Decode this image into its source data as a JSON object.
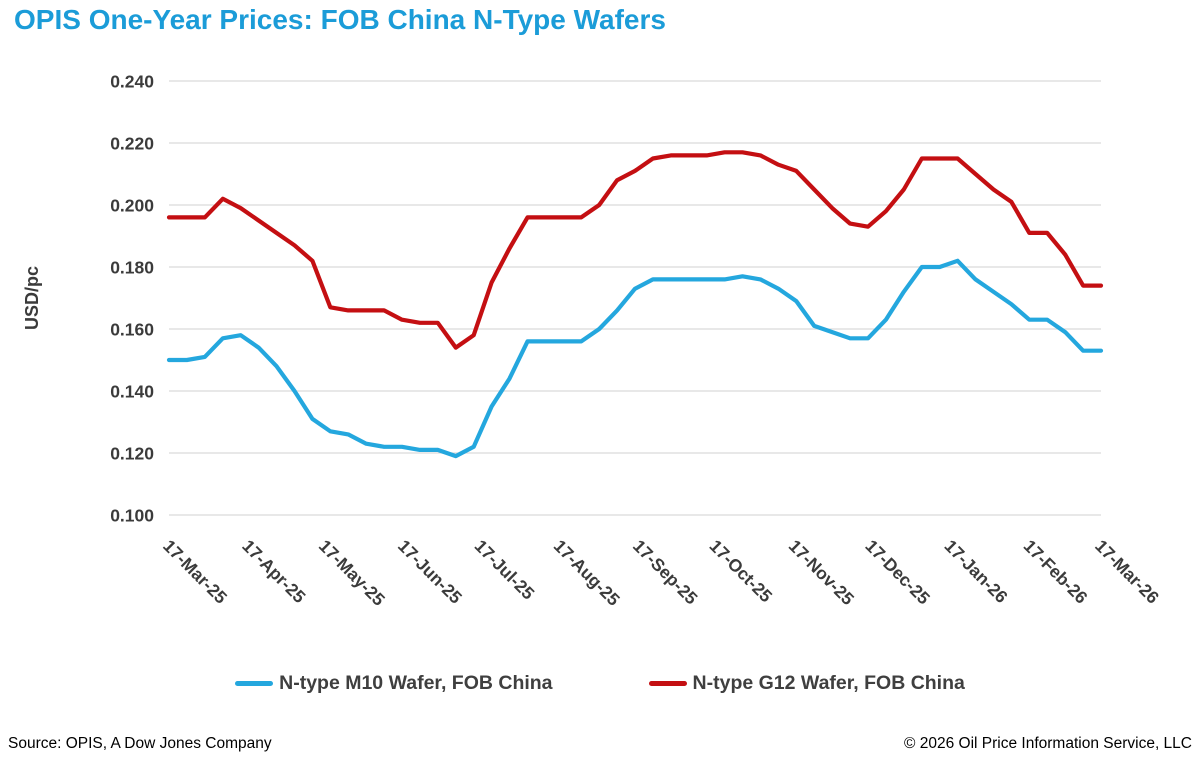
{
  "title": "OPIS One-Year Prices: FOB China N-Type Wafers",
  "colors": {
    "title": "#1b9cd8",
    "m10_line": "#24a7de",
    "g12_line": "#c40f12",
    "grid": "#dadada",
    "axis_text": "#3b3b3b"
  },
  "y_axis": {
    "label": "USD/pc",
    "ticks": [
      0.24,
      0.22,
      0.2,
      0.18,
      0.16,
      0.14,
      0.12,
      0.1
    ]
  },
  "x_axis": {
    "ticks": [
      {
        "label": "17-Mar-25",
        "day": 0
      },
      {
        "label": "17-Apr-25",
        "day": 31
      },
      {
        "label": "17-May-25",
        "day": 61
      },
      {
        "label": "17-Jun-25",
        "day": 92
      },
      {
        "label": "17-Jul-25",
        "day": 122
      },
      {
        "label": "17-Aug-25",
        "day": 153
      },
      {
        "label": "17-Sep-25",
        "day": 184
      },
      {
        "label": "17-Oct-25",
        "day": 214
      },
      {
        "label": "17-Nov-25",
        "day": 245
      },
      {
        "label": "17-Dec-25",
        "day": 275
      },
      {
        "label": "17-Jan-26",
        "day": 306
      },
      {
        "label": "17-Feb-26",
        "day": 337
      },
      {
        "label": "17-Mar-26",
        "day": 365
      }
    ]
  },
  "legend": [
    {
      "label": "N-type M10 Wafer, FOB China",
      "series": "m10"
    },
    {
      "label": "N-type G12 Wafer, FOB China",
      "series": "g12"
    }
  ],
  "footer": {
    "source": "Source: OPIS, A Dow Jones Company",
    "copyright": "© 2026 Oil Price Information Service, LLC"
  },
  "chart_data": {
    "type": "line",
    "title": "OPIS One-Year Prices: FOB China N-Type Wafers",
    "ylabel": "USD/pc",
    "ylim": [
      0.1,
      0.24
    ],
    "ytick_step": 0.02,
    "grid": "horizontal",
    "legend_position": "bottom",
    "x_start": "17-Mar-25",
    "x_end": "17-Mar-26",
    "x_interval": "weekly",
    "series": [
      {
        "name": "N-type M10 Wafer, FOB China",
        "color_key": "m10_line",
        "values": [
          0.15,
          0.15,
          0.151,
          0.157,
          0.158,
          0.154,
          0.148,
          0.14,
          0.131,
          0.127,
          0.126,
          0.123,
          0.122,
          0.122,
          0.121,
          0.121,
          0.119,
          0.122,
          0.135,
          0.144,
          0.156,
          0.156,
          0.156,
          0.156,
          0.16,
          0.166,
          0.173,
          0.176,
          0.176,
          0.176,
          0.176,
          0.176,
          0.177,
          0.176,
          0.173,
          0.169,
          0.161,
          0.159,
          0.157,
          0.157,
          0.163,
          0.172,
          0.18,
          0.18,
          0.182,
          0.176,
          0.172,
          0.168,
          0.163,
          0.163,
          0.159,
          0.153,
          0.153
        ]
      },
      {
        "name": "N-type G12 Wafer, FOB China",
        "color_key": "g12_line",
        "values": [
          0.196,
          0.196,
          0.196,
          0.202,
          0.199,
          0.195,
          0.191,
          0.187,
          0.182,
          0.167,
          0.166,
          0.166,
          0.166,
          0.163,
          0.162,
          0.162,
          0.154,
          0.158,
          0.175,
          0.186,
          0.196,
          0.196,
          0.196,
          0.196,
          0.2,
          0.208,
          0.211,
          0.215,
          0.216,
          0.216,
          0.216,
          0.217,
          0.217,
          0.216,
          0.213,
          0.211,
          0.205,
          0.199,
          0.194,
          0.193,
          0.198,
          0.205,
          0.215,
          0.215,
          0.215,
          0.21,
          0.205,
          0.201,
          0.191,
          0.191,
          0.184,
          0.174,
          0.174
        ]
      }
    ]
  }
}
